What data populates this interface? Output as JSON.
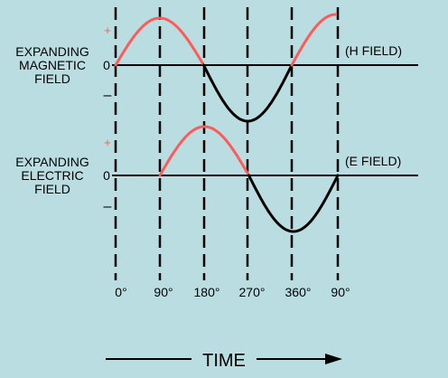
{
  "colors": {
    "background": "#b9dde0",
    "positive_half": "#ff5a5a",
    "negative_half": "#000000"
  },
  "h_field": {
    "label_lines": [
      "EXPANDING",
      "MAGNETIC",
      "FIELD"
    ],
    "tag": "(H FIELD)",
    "plus": "+",
    "zero": "0",
    "minus": "–"
  },
  "e_field": {
    "label_lines": [
      "EXPANDING",
      "ELECTRIC",
      "FIELD"
    ],
    "tag": "(E FIELD)",
    "plus": "+",
    "zero": "0",
    "minus": "–"
  },
  "x_ticks": [
    "0°",
    "90°",
    "180°",
    "270°",
    "360°",
    "90°"
  ],
  "time_label": "TIME"
}
